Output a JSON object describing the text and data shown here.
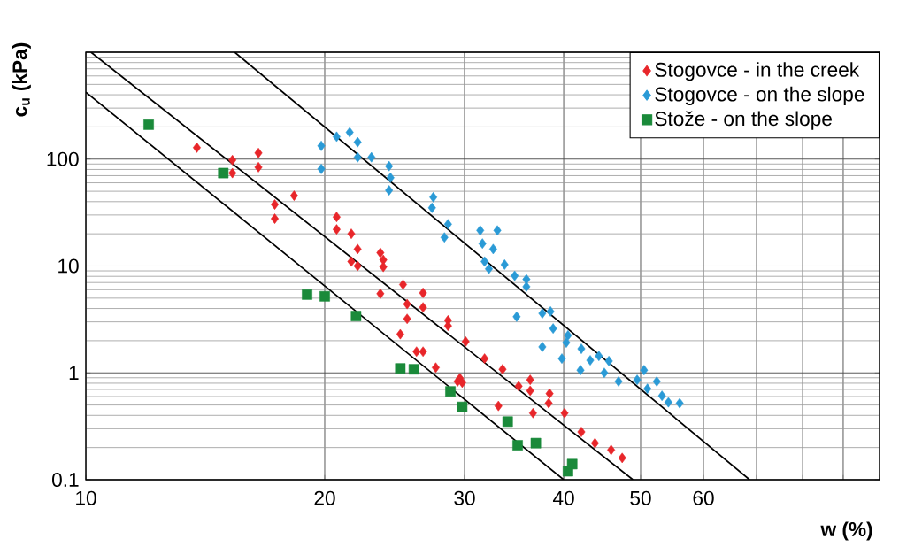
{
  "chart_data": {
    "type": "scatter",
    "xlabel": "w (%)",
    "ylabel": "c$_{u}$ (kPa)",
    "log": "xy",
    "grid": true,
    "legend": "top right",
    "xlim": [
      10,
      100
    ],
    "ylim": [
      0.1,
      1000
    ],
    "xticks": [
      10,
      20,
      30,
      40,
      50,
      60,
      {
        "value": 70,
        "label": null
      },
      {
        "value": 80,
        "label": null
      },
      {
        "value": 90,
        "label": null
      },
      {
        "value": 100,
        "label": null
      }
    ],
    "yticks": [
      0.1,
      1,
      10,
      100,
      {
        "value": 1000,
        "label": null
      }
    ],
    "series": [
      {
        "name": "Stogovce - in the creek",
        "marker": "diamond",
        "color": "#e8262a",
        "x": [
          13.8,
          15.3,
          15.3,
          16.5,
          16.5,
          17.3,
          17.3,
          18.3,
          20.7,
          20.7,
          21.6,
          22.0,
          21.6,
          22.0,
          23.5,
          23.7,
          23.7,
          25.1,
          26.6,
          23.5,
          25.4,
          26.6,
          25.4,
          28.6,
          28.6,
          24.9,
          26.1,
          26.6,
          27.6,
          29.4,
          30.1,
          31.8,
          33.5,
          29.6,
          29.8,
          35.1,
          36.3,
          36.3,
          38.4,
          38.3,
          33.1,
          36.6,
          40.1,
          42.1,
          43.8,
          45.9,
          47.4
        ],
        "values": [
          128,
          98,
          74,
          114,
          84,
          37.6,
          27.7,
          45.5,
          28.7,
          22,
          20,
          14.4,
          11,
          10,
          13.3,
          11.4,
          9.8,
          6.7,
          5.6,
          5.5,
          4.4,
          4.1,
          3.2,
          3.1,
          2.75,
          2.3,
          1.58,
          1.58,
          1.12,
          0.83,
          1.96,
          1.36,
          1.08,
          0.89,
          0.81,
          0.75,
          0.86,
          0.68,
          0.64,
          0.52,
          0.49,
          0.42,
          0.42,
          0.28,
          0.22,
          0.19,
          0.16
        ]
      },
      {
        "name": "Stogovce - on the slope",
        "marker": "diamond",
        "color": "#2a9ad6",
        "x": [
          19.8,
          19.8,
          20.7,
          21.5,
          22.0,
          22.0,
          22.9,
          24.1,
          24.2,
          24.1,
          27.4,
          27.3,
          28.6,
          28.3,
          31.4,
          33.0,
          31.6,
          32.6,
          31.8,
          33.7,
          34.7,
          35.9,
          35.9,
          32.2,
          34.9,
          37.6,
          38.5,
          38.8,
          37.6,
          40.5,
          40.3,
          39.8,
          42.1,
          43.2,
          44.3,
          45.6,
          42.0,
          45.0,
          46.9,
          49.5,
          50.5,
          52.4,
          53.2,
          54.2,
          56.0,
          51.0
        ],
        "values": [
          133,
          81,
          162,
          178,
          144,
          104,
          104,
          86,
          67,
          51,
          44,
          35,
          24.6,
          18.5,
          21.5,
          21.5,
          16.2,
          14.4,
          11,
          10.3,
          8.1,
          7.5,
          6.4,
          9.4,
          3.35,
          3.6,
          3.75,
          2.6,
          1.75,
          2.24,
          1.92,
          1.36,
          1.68,
          1.31,
          1.44,
          1.29,
          1.06,
          1.0,
          0.83,
          0.86,
          1.06,
          0.83,
          0.61,
          0.53,
          0.52,
          0.71
        ]
      },
      {
        "name": "Stože - on the slope",
        "marker": "square",
        "color": "#1a8a3a",
        "x": [
          12.0,
          14.9,
          19.0,
          20.0,
          21.9,
          24.9,
          25.9,
          28.8,
          29.8,
          34.0,
          35.0,
          36.9,
          40.5,
          41.0
        ],
        "values": [
          210,
          74,
          5.4,
          5.2,
          3.4,
          1.1,
          1.08,
          0.67,
          0.48,
          0.35,
          0.21,
          0.22,
          0.12,
          0.14
        ]
      },
      {
        "type": "line",
        "marker": "none",
        "line_style": "solid",
        "color": "#000000",
        "x": [
          15.4,
          68.6
        ],
        "values": [
          1000,
          0.1
        ]
      },
      {
        "type": "line",
        "marker": "none",
        "line_style": "solid",
        "color": "#000000",
        "x": [
          10.15,
          48.9
        ],
        "values": [
          1000,
          0.1
        ]
      },
      {
        "type": "line",
        "marker": "none",
        "line_style": "solid",
        "color": "#000000",
        "x": [
          10,
          40
        ],
        "values": [
          422,
          0.1
        ]
      }
    ]
  }
}
